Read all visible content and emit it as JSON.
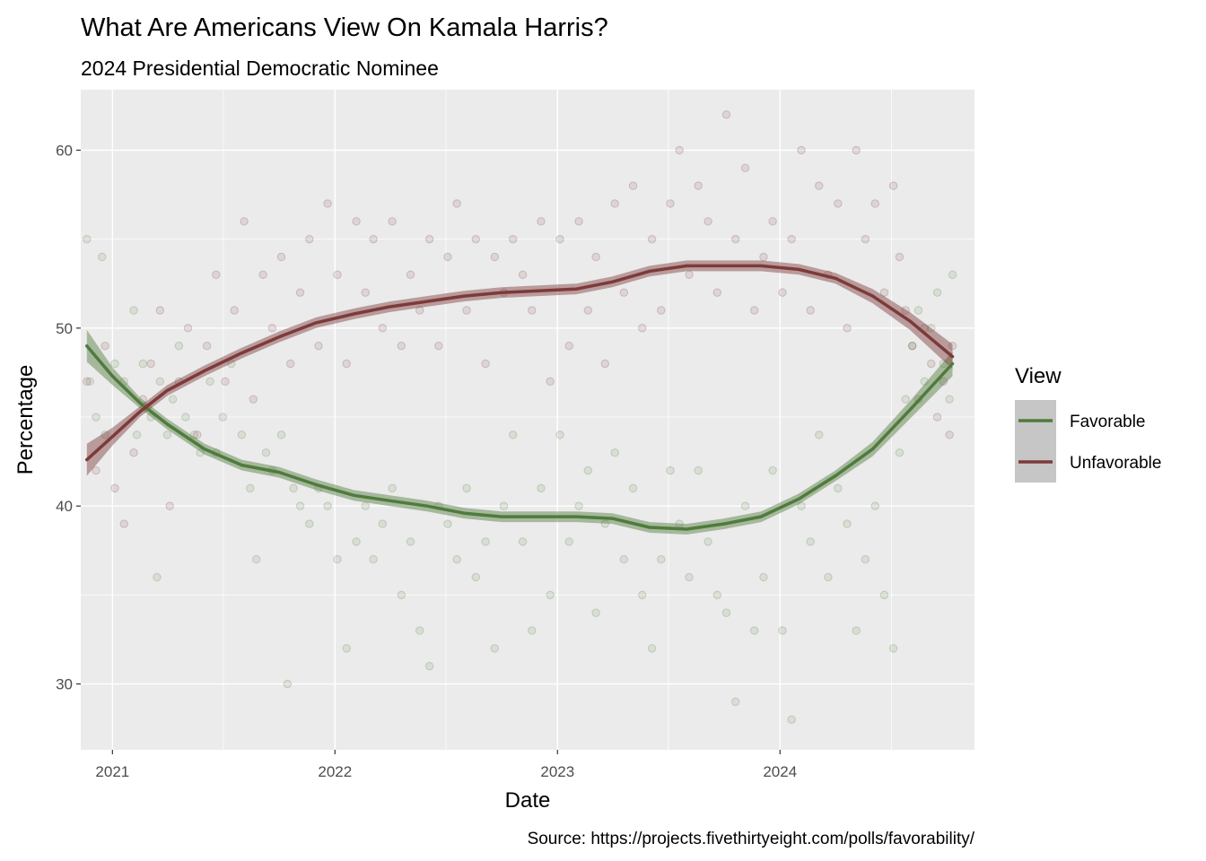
{
  "chart_data": {
    "type": "scatter",
    "title": "What Are Americans View On Kamala Harris?",
    "subtitle": "2024 Presidential Democratic Nominee",
    "xlabel": "Date",
    "ylabel": "Percentage",
    "caption": "Source: https://projects.fivethirtyeight.com/polls/favorability/",
    "xlim": [
      "2020-11-10",
      "2024-11-15"
    ],
    "ylim": [
      26.3,
      63.4
    ],
    "x_ticks": [
      "2021",
      "2022",
      "2023",
      "2024"
    ],
    "y_ticks": [
      30,
      40,
      50,
      60
    ],
    "grid": true,
    "legend": {
      "title": "View",
      "position": "right"
    },
    "series": [
      {
        "name": "Favorable",
        "color": "#4f7b3c",
        "smooth": [
          [
            "2020-11-20",
            49.0
          ],
          [
            "2021-01-01",
            47.3
          ],
          [
            "2021-02-15",
            45.8
          ],
          [
            "2021-04-01",
            44.6
          ],
          [
            "2021-06-01",
            43.2
          ],
          [
            "2021-08-01",
            42.3
          ],
          [
            "2021-10-01",
            41.9
          ],
          [
            "2021-12-01",
            41.2
          ],
          [
            "2022-02-01",
            40.6
          ],
          [
            "2022-04-01",
            40.3
          ],
          [
            "2022-06-01",
            40.0
          ],
          [
            "2022-08-01",
            39.6
          ],
          [
            "2022-10-01",
            39.4
          ],
          [
            "2022-12-01",
            39.4
          ],
          [
            "2023-02-01",
            39.4
          ],
          [
            "2023-04-01",
            39.3
          ],
          [
            "2023-06-01",
            38.8
          ],
          [
            "2023-08-01",
            38.7
          ],
          [
            "2023-10-01",
            39.0
          ],
          [
            "2023-12-01",
            39.4
          ],
          [
            "2024-02-01",
            40.4
          ],
          [
            "2024-04-01",
            41.7
          ],
          [
            "2024-06-01",
            43.2
          ],
          [
            "2024-08-01",
            45.4
          ],
          [
            "2024-10-10",
            48.0
          ]
        ],
        "band_halfwidth": [
          0.9,
          0.5,
          0.3,
          0.3,
          0.3,
          0.3,
          0.3,
          0.3,
          0.3,
          0.3,
          0.3,
          0.3,
          0.3,
          0.3,
          0.3,
          0.3,
          0.3,
          0.3,
          0.3,
          0.3,
          0.3,
          0.3,
          0.4,
          0.5,
          0.7
        ],
        "points": [
          [
            "2020-11-20",
            55
          ],
          [
            "2020-11-25",
            47
          ],
          [
            "2020-12-05",
            45
          ],
          [
            "2020-12-15",
            54
          ],
          [
            "2020-12-20",
            44
          ],
          [
            "2021-01-05",
            48
          ],
          [
            "2021-01-20",
            47
          ],
          [
            "2021-02-05",
            51
          ],
          [
            "2021-02-10",
            44
          ],
          [
            "2021-02-20",
            48
          ],
          [
            "2021-03-05",
            45
          ],
          [
            "2021-03-15",
            36
          ],
          [
            "2021-03-20",
            47
          ],
          [
            "2021-04-01",
            44
          ],
          [
            "2021-04-10",
            46
          ],
          [
            "2021-04-20",
            49
          ],
          [
            "2021-05-01",
            45
          ],
          [
            "2021-05-15",
            44
          ],
          [
            "2021-05-25",
            43
          ],
          [
            "2021-06-10",
            47
          ],
          [
            "2021-06-20",
            43
          ],
          [
            "2021-07-01",
            45
          ],
          [
            "2021-07-15",
            48
          ],
          [
            "2021-08-01",
            44
          ],
          [
            "2021-08-15",
            41
          ],
          [
            "2021-08-25",
            37
          ],
          [
            "2021-09-10",
            43
          ],
          [
            "2021-09-20",
            42
          ],
          [
            "2021-10-05",
            44
          ],
          [
            "2021-10-15",
            30
          ],
          [
            "2021-10-25",
            41
          ],
          [
            "2021-11-05",
            40
          ],
          [
            "2021-11-20",
            39
          ],
          [
            "2021-12-05",
            41
          ],
          [
            "2021-12-20",
            40
          ],
          [
            "2022-01-05",
            37
          ],
          [
            "2022-01-20",
            32
          ],
          [
            "2022-02-05",
            38
          ],
          [
            "2022-02-20",
            40
          ],
          [
            "2022-03-05",
            37
          ],
          [
            "2022-03-20",
            39
          ],
          [
            "2022-04-05",
            41
          ],
          [
            "2022-04-20",
            35
          ],
          [
            "2022-05-05",
            38
          ],
          [
            "2022-05-20",
            33
          ],
          [
            "2022-06-05",
            31
          ],
          [
            "2022-06-20",
            40
          ],
          [
            "2022-07-05",
            39
          ],
          [
            "2022-07-20",
            37
          ],
          [
            "2022-08-05",
            41
          ],
          [
            "2022-08-20",
            36
          ],
          [
            "2022-09-05",
            38
          ],
          [
            "2022-09-20",
            32
          ],
          [
            "2022-10-05",
            40
          ],
          [
            "2022-10-20",
            44
          ],
          [
            "2022-11-05",
            38
          ],
          [
            "2022-11-20",
            33
          ],
          [
            "2022-12-05",
            41
          ],
          [
            "2022-12-20",
            35
          ],
          [
            "2023-01-05",
            44
          ],
          [
            "2023-01-20",
            38
          ],
          [
            "2023-02-05",
            40
          ],
          [
            "2023-02-20",
            42
          ],
          [
            "2023-03-05",
            34
          ],
          [
            "2023-03-20",
            39
          ],
          [
            "2023-04-05",
            43
          ],
          [
            "2023-04-20",
            37
          ],
          [
            "2023-05-05",
            41
          ],
          [
            "2023-05-20",
            35
          ],
          [
            "2023-06-05",
            32
          ],
          [
            "2023-06-20",
            37
          ],
          [
            "2023-07-05",
            42
          ],
          [
            "2023-07-20",
            39
          ],
          [
            "2023-08-05",
            36
          ],
          [
            "2023-08-20",
            42
          ],
          [
            "2023-09-05",
            38
          ],
          [
            "2023-09-20",
            35
          ],
          [
            "2023-10-05",
            34
          ],
          [
            "2023-10-20",
            29
          ],
          [
            "2023-11-05",
            40
          ],
          [
            "2023-11-20",
            33
          ],
          [
            "2023-12-05",
            36
          ],
          [
            "2023-12-20",
            42
          ],
          [
            "2024-01-05",
            33
          ],
          [
            "2024-01-20",
            28
          ],
          [
            "2024-02-05",
            40
          ],
          [
            "2024-02-20",
            38
          ],
          [
            "2024-03-05",
            44
          ],
          [
            "2024-03-20",
            36
          ],
          [
            "2024-04-05",
            41
          ],
          [
            "2024-04-20",
            39
          ],
          [
            "2024-05-05",
            33
          ],
          [
            "2024-05-20",
            37
          ],
          [
            "2024-06-05",
            40
          ],
          [
            "2024-06-20",
            35
          ],
          [
            "2024-07-05",
            32
          ],
          [
            "2024-07-15",
            43
          ],
          [
            "2024-07-25",
            46
          ],
          [
            "2024-08-05",
            49
          ],
          [
            "2024-08-15",
            51
          ],
          [
            "2024-08-25",
            47
          ],
          [
            "2024-09-05",
            50
          ],
          [
            "2024-09-15",
            52
          ],
          [
            "2024-09-25",
            48
          ],
          [
            "2024-10-05",
            46
          ],
          [
            "2024-10-10",
            53
          ]
        ]
      },
      {
        "name": "Unfavorable",
        "color": "#7d3a3a",
        "smooth": [
          [
            "2020-11-20",
            42.6
          ],
          [
            "2021-01-01",
            43.9
          ],
          [
            "2021-02-15",
            45.3
          ],
          [
            "2021-04-01",
            46.5
          ],
          [
            "2021-06-01",
            47.6
          ],
          [
            "2021-08-01",
            48.6
          ],
          [
            "2021-10-01",
            49.5
          ],
          [
            "2021-12-01",
            50.3
          ],
          [
            "2022-02-01",
            50.8
          ],
          [
            "2022-04-01",
            51.2
          ],
          [
            "2022-06-01",
            51.5
          ],
          [
            "2022-08-01",
            51.8
          ],
          [
            "2022-10-01",
            52.0
          ],
          [
            "2022-12-01",
            52.1
          ],
          [
            "2023-02-01",
            52.2
          ],
          [
            "2023-04-01",
            52.6
          ],
          [
            "2023-06-01",
            53.2
          ],
          [
            "2023-08-01",
            53.5
          ],
          [
            "2023-10-01",
            53.5
          ],
          [
            "2023-12-01",
            53.5
          ],
          [
            "2024-02-01",
            53.3
          ],
          [
            "2024-04-01",
            52.8
          ],
          [
            "2024-06-01",
            51.8
          ],
          [
            "2024-08-01",
            50.4
          ],
          [
            "2024-10-10",
            48.4
          ]
        ],
        "band_halfwidth": [
          0.9,
          0.5,
          0.3,
          0.3,
          0.3,
          0.3,
          0.3,
          0.3,
          0.3,
          0.3,
          0.3,
          0.3,
          0.3,
          0.3,
          0.3,
          0.3,
          0.3,
          0.3,
          0.3,
          0.3,
          0.3,
          0.3,
          0.4,
          0.5,
          0.7
        ],
        "points": [
          [
            "2020-11-20",
            47
          ],
          [
            "2020-12-05",
            42
          ],
          [
            "2020-12-20",
            49
          ],
          [
            "2021-01-05",
            41
          ],
          [
            "2021-01-20",
            39
          ],
          [
            "2021-02-05",
            43
          ],
          [
            "2021-02-20",
            46
          ],
          [
            "2021-03-05",
            48
          ],
          [
            "2021-03-20",
            51
          ],
          [
            "2021-04-05",
            40
          ],
          [
            "2021-04-20",
            47
          ],
          [
            "2021-05-05",
            50
          ],
          [
            "2021-05-20",
            44
          ],
          [
            "2021-06-05",
            49
          ],
          [
            "2021-06-20",
            53
          ],
          [
            "2021-07-05",
            47
          ],
          [
            "2021-07-20",
            51
          ],
          [
            "2021-08-05",
            56
          ],
          [
            "2021-08-20",
            46
          ],
          [
            "2021-09-05",
            53
          ],
          [
            "2021-09-20",
            50
          ],
          [
            "2021-10-05",
            54
          ],
          [
            "2021-10-20",
            48
          ],
          [
            "2021-11-05",
            52
          ],
          [
            "2021-11-20",
            55
          ],
          [
            "2021-12-05",
            49
          ],
          [
            "2021-12-20",
            57
          ],
          [
            "2022-01-05",
            53
          ],
          [
            "2022-01-20",
            48
          ],
          [
            "2022-02-05",
            56
          ],
          [
            "2022-02-20",
            52
          ],
          [
            "2022-03-05",
            55
          ],
          [
            "2022-03-20",
            50
          ],
          [
            "2022-04-05",
            56
          ],
          [
            "2022-04-20",
            49
          ],
          [
            "2022-05-05",
            53
          ],
          [
            "2022-05-20",
            51
          ],
          [
            "2022-06-05",
            55
          ],
          [
            "2022-06-20",
            49
          ],
          [
            "2022-07-05",
            54
          ],
          [
            "2022-07-20",
            57
          ],
          [
            "2022-08-05",
            51
          ],
          [
            "2022-08-20",
            55
          ],
          [
            "2022-09-05",
            48
          ],
          [
            "2022-09-20",
            54
          ],
          [
            "2022-10-05",
            52
          ],
          [
            "2022-10-20",
            55
          ],
          [
            "2022-11-05",
            53
          ],
          [
            "2022-11-20",
            51
          ],
          [
            "2022-12-05",
            56
          ],
          [
            "2022-12-20",
            47
          ],
          [
            "2023-01-05",
            55
          ],
          [
            "2023-01-20",
            49
          ],
          [
            "2023-02-05",
            56
          ],
          [
            "2023-02-20",
            51
          ],
          [
            "2023-03-05",
            54
          ],
          [
            "2023-03-20",
            48
          ],
          [
            "2023-04-05",
            57
          ],
          [
            "2023-04-20",
            52
          ],
          [
            "2023-05-05",
            58
          ],
          [
            "2023-05-20",
            50
          ],
          [
            "2023-06-05",
            55
          ],
          [
            "2023-06-20",
            51
          ],
          [
            "2023-07-05",
            57
          ],
          [
            "2023-07-20",
            60
          ],
          [
            "2023-08-05",
            53
          ],
          [
            "2023-08-20",
            58
          ],
          [
            "2023-09-05",
            56
          ],
          [
            "2023-09-20",
            52
          ],
          [
            "2023-10-05",
            62
          ],
          [
            "2023-10-20",
            55
          ],
          [
            "2023-11-05",
            59
          ],
          [
            "2023-11-20",
            51
          ],
          [
            "2023-12-05",
            54
          ],
          [
            "2023-12-20",
            56
          ],
          [
            "2024-01-05",
            52
          ],
          [
            "2024-01-20",
            55
          ],
          [
            "2024-02-05",
            60
          ],
          [
            "2024-02-20",
            51
          ],
          [
            "2024-03-05",
            58
          ],
          [
            "2024-03-20",
            53
          ],
          [
            "2024-04-05",
            57
          ],
          [
            "2024-04-20",
            50
          ],
          [
            "2024-05-05",
            60
          ],
          [
            "2024-05-20",
            55
          ],
          [
            "2024-06-05",
            57
          ],
          [
            "2024-06-20",
            52
          ],
          [
            "2024-07-05",
            58
          ],
          [
            "2024-07-15",
            54
          ],
          [
            "2024-07-25",
            51
          ],
          [
            "2024-08-05",
            49
          ],
          [
            "2024-08-15",
            46
          ],
          [
            "2024-08-25",
            50
          ],
          [
            "2024-09-05",
            48
          ],
          [
            "2024-09-15",
            45
          ],
          [
            "2024-09-25",
            47
          ],
          [
            "2024-10-05",
            44
          ],
          [
            "2024-10-10",
            49
          ]
        ]
      }
    ]
  }
}
